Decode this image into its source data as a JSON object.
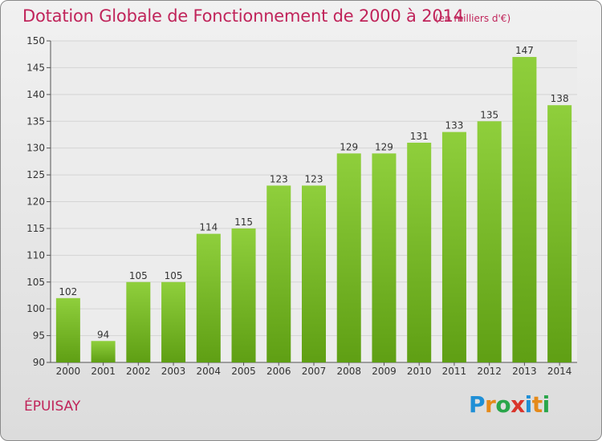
{
  "header": {
    "title": "Dotation Globale de Fonctionnement de 2000 à 2014",
    "subtitle": "(en milliers d'€)"
  },
  "footer": {
    "commune": "ÉPUISAY",
    "logo_text": "Proxiti",
    "logo_colors": [
      "#1f8fd6",
      "#e58a1a",
      "#2aa64a",
      "#d9342b",
      "#1f8fd6",
      "#e58a1a",
      "#2aa64a"
    ]
  },
  "chart_data": {
    "type": "bar",
    "title": "Dotation Globale de Fonctionnement de 2000 à 2014",
    "subtitle": "(en milliers d'€)",
    "xlabel": "",
    "ylabel": "",
    "categories": [
      "2000",
      "2001",
      "2002",
      "2003",
      "2004",
      "2005",
      "2006",
      "2007",
      "2008",
      "2009",
      "2010",
      "2011",
      "2012",
      "2013",
      "2014"
    ],
    "values": [
      102,
      94,
      105,
      105,
      114,
      115,
      123,
      123,
      129,
      129,
      131,
      133,
      135,
      147,
      138
    ],
    "ylim": [
      90,
      150
    ],
    "yticks": [
      90,
      95,
      100,
      105,
      110,
      115,
      120,
      125,
      130,
      135,
      140,
      145,
      150
    ],
    "grid": true,
    "bar_color": "#7dbf2e",
    "bar_color_dark": "#5e9e12"
  }
}
